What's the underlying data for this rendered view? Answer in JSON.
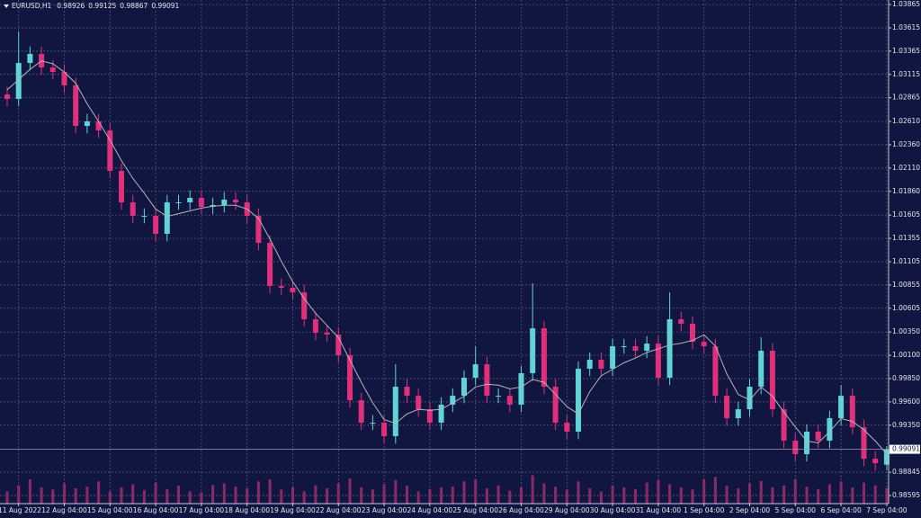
{
  "chart_data": {
    "type": "candlestick",
    "symbol": "EURUSD,H1",
    "categories": [
      null,
      "11 Aug 2022",
      null,
      null,
      null,
      "12 Aug 04:00",
      null,
      null,
      null,
      "15 Aug 04:00",
      null,
      null,
      null,
      "16 Aug 04:00",
      null,
      null,
      null,
      "17 Aug 04:00",
      null,
      null,
      null,
      "18 Aug 04:00",
      null,
      null,
      null,
      "19 Aug 04:00",
      null,
      null,
      null,
      "22 Aug 04:00",
      null,
      null,
      null,
      "23 Aug 04:00",
      null,
      null,
      null,
      "24 Aug 04:00",
      null,
      null,
      null,
      "25 Aug 04:00",
      null,
      null,
      null,
      "26 Aug 04:00",
      null,
      null,
      null,
      "29 Aug 04:00",
      null,
      null,
      null,
      "30 Aug 04:00",
      null,
      null,
      null,
      "31 Aug 04:00",
      null,
      null,
      null,
      "1 Sep 04:00",
      null,
      null,
      null,
      "2 Sep 04:00",
      null,
      null,
      null,
      "5 Sep 04:00",
      null,
      null,
      null,
      "6 Sep 04:00",
      null,
      null,
      null,
      "7 Sep 04:00"
    ],
    "open": [
      1.029,
      1.02852,
      1.03238,
      1.03335,
      1.0319,
      1.03142,
      1.02997,
      1.02562,
      1.02611,
      1.02514,
      1.0208,
      1.01742,
      1.01597,
      1.01597,
      1.01404,
      1.01742,
      1.01742,
      1.0179,
      1.01694,
      1.01713,
      1.01771,
      1.01742,
      1.01597,
      1.01307,
      1.00844,
      1.00825,
      1.00776,
      1.00487,
      1.00342,
      1.00323,
      1.00101,
      0.99618,
      0.99377,
      0.99377,
      0.99232,
      0.99763,
      0.99666,
      0.99521,
      0.99377,
      0.9957,
      0.99666,
      0.99859,
      1.00004,
      0.99666,
      0.99666,
      0.9957,
      0.99908,
      1.0039,
      0.99763,
      0.99377,
      0.9928,
      0.99956,
      1.00052,
      0.99956,
      1.00197,
      1.00197,
      1.00149,
      1.00226,
      0.99859,
      1.00487,
      1.00439,
      1.00245,
      1.00197,
      0.99666,
      0.99425,
      0.99521,
      0.99763,
      1.00149,
      0.99521,
      0.99184,
      0.99039,
      0.9928,
      0.99184,
      0.99425,
      0.99666,
      0.99328,
      0.9899,
      0.98926
    ],
    "high": [
      1.0298,
      1.03576,
      1.03415,
      1.03415,
      1.0327,
      1.03222,
      1.03077,
      1.02691,
      1.02691,
      1.02594,
      1.0216,
      1.01822,
      1.01677,
      1.01677,
      1.01822,
      1.01822,
      1.0187,
      1.0187,
      1.01793,
      1.01851,
      1.01851,
      1.01822,
      1.01677,
      1.01387,
      1.00924,
      1.00905,
      1.00856,
      1.00567,
      1.00422,
      1.00403,
      1.00181,
      0.99698,
      0.99457,
      0.99457,
      1.00004,
      0.99843,
      0.99746,
      0.99601,
      0.9965,
      0.99746,
      0.99939,
      1.00197,
      1.00084,
      0.99746,
      0.99746,
      0.99988,
      1.00873,
      1.0047,
      0.99843,
      0.99457,
      1.00036,
      1.00132,
      1.00132,
      1.00277,
      1.00277,
      1.00277,
      1.00306,
      1.00306,
      1.00776,
      1.00567,
      1.00519,
      1.00325,
      1.00277,
      0.99746,
      0.99601,
      0.99843,
      1.00294,
      1.00229,
      0.99601,
      0.99264,
      0.9936,
      0.9936,
      0.99505,
      0.99782,
      0.99746,
      0.99408,
      0.9907,
      0.99125
    ],
    "low": [
      1.02772,
      1.02772,
      1.03158,
      1.0311,
      1.03062,
      1.02917,
      1.02482,
      1.02482,
      1.02434,
      1.02,
      1.01662,
      1.01517,
      1.01517,
      1.01324,
      1.01324,
      1.01662,
      1.01662,
      1.01614,
      1.01614,
      1.01633,
      1.01662,
      1.01517,
      1.01227,
      1.00764,
      1.00745,
      1.00696,
      1.00407,
      1.00262,
      1.00243,
      1.00021,
      0.99538,
      0.99297,
      0.99297,
      0.99152,
      0.99152,
      0.99586,
      0.99441,
      0.99297,
      0.99297,
      0.9949,
      0.99586,
      0.99779,
      0.99586,
      0.99586,
      0.9949,
      0.9949,
      0.99828,
      0.99683,
      0.99297,
      0.992,
      0.992,
      0.99876,
      0.99876,
      0.99876,
      1.00117,
      1.00069,
      1.00069,
      0.99779,
      0.99779,
      1.00359,
      1.00165,
      1.00117,
      0.99586,
      0.99345,
      0.99345,
      0.99441,
      0.99683,
      0.99441,
      0.99104,
      0.98959,
      0.98959,
      0.99104,
      0.99104,
      0.99345,
      0.99248,
      0.9891,
      0.98862,
      0.98867
    ],
    "close": [
      1.02852,
      1.03238,
      1.03335,
      1.0319,
      1.03142,
      1.02997,
      1.02562,
      1.02611,
      1.02514,
      1.0208,
      1.01742,
      1.01597,
      1.01597,
      1.01404,
      1.01742,
      1.01742,
      1.0179,
      1.01694,
      1.01713,
      1.01771,
      1.01742,
      1.01597,
      1.01307,
      1.00844,
      1.00825,
      1.00776,
      1.00487,
      1.00342,
      1.00323,
      1.00101,
      0.99618,
      0.99377,
      0.99377,
      0.99232,
      0.99763,
      0.99666,
      0.99521,
      0.99377,
      0.9957,
      0.99666,
      0.99859,
      1.00004,
      0.99666,
      0.99666,
      0.9957,
      0.99908,
      1.0039,
      0.99763,
      0.99377,
      0.9928,
      0.99956,
      1.00052,
      0.99956,
      1.00197,
      1.00197,
      1.00149,
      1.00226,
      0.99859,
      1.00487,
      1.00439,
      1.00245,
      1.00197,
      0.99666,
      0.99425,
      0.99521,
      0.99763,
      1.00149,
      0.99521,
      0.99184,
      0.99039,
      0.9928,
      0.99184,
      0.99425,
      0.99666,
      0.99328,
      0.9899,
      0.98942,
      0.99091
    ],
    "up_color": "#5fd3d6",
    "down_color": "#e0307c",
    "moving_average": {
      "color": "#b4b4bc",
      "values": [
        1.0295,
        1.0306,
        1.0317,
        1.0326,
        1.0323,
        1.0314,
        1.0302,
        1.028,
        1.0261,
        1.0241,
        1.0219,
        1.02,
        1.0184,
        1.0167,
        1.0159,
        1.0162,
        1.0165,
        1.0168,
        1.017,
        1.0171,
        1.0171,
        1.0167,
        1.0157,
        1.0135,
        1.0111,
        1.0089,
        1.0071,
        1.0055,
        1.0042,
        1.0029,
        1.0005,
        0.9981,
        0.9959,
        0.9941,
        0.9937,
        0.9947,
        0.9952,
        0.9951,
        0.9952,
        0.9959,
        0.9966,
        0.9976,
        0.9979,
        0.9978,
        0.9974,
        0.9976,
        0.9984,
        0.9981,
        0.9968,
        0.9955,
        0.9947,
        0.9971,
        0.9988,
        0.9995,
        1.0002,
        1.0007,
        1.0013,
        1.0017,
        1.0021,
        1.0023,
        1.0026,
        1.0032,
        1.002,
        0.999,
        0.9968,
        0.9962,
        0.9976,
        0.9966,
        0.9949,
        0.9933,
        0.9918,
        0.9916,
        0.9928,
        0.9942,
        0.9939,
        0.993,
        0.9918,
        0.9904
      ]
    },
    "volume": [
      30,
      45,
      60,
      40,
      35,
      50,
      38,
      42,
      55,
      30,
      40,
      48,
      33,
      52,
      36,
      44,
      30,
      28,
      46,
      50,
      42,
      38,
      55,
      60,
      35,
      40,
      30,
      45,
      38,
      50,
      62,
      40,
      35,
      48,
      58,
      44,
      30,
      36,
      40,
      42,
      55,
      60,
      38,
      45,
      32,
      40,
      70,
      50,
      42,
      35,
      55,
      38,
      30,
      45,
      40,
      36,
      52,
      58,
      48,
      40,
      35,
      60,
      66,
      44,
      38,
      50,
      56,
      40,
      45,
      60,
      42,
      36,
      48,
      55,
      40,
      52,
      45,
      38
    ],
    "volume_lim": [
      0,
      100
    ],
    "volume_color": "#8a2a66",
    "ylim": [
      0.98508,
      1.03914
    ],
    "yticks": [
      1.03865,
      1.03615,
      1.03365,
      1.03115,
      1.02865,
      {
        "value": 1.0261,
        "label": "1.02610"
      },
      {
        "value": 1.0236,
        "label": "1.02360"
      },
      {
        "value": 1.0211,
        "label": "1.02110"
      },
      {
        "value": 1.0186,
        "label": "1.01860"
      },
      1.01605,
      1.01355,
      1.01105,
      1.00855,
      1.00605,
      {
        "value": 1.0035,
        "label": "1.00350"
      },
      {
        "value": 1.001,
        "label": "1.00100"
      },
      {
        "value": 0.9985,
        "label": "0.99850"
      },
      {
        "value": 0.996,
        "label": "0.99600"
      },
      {
        "value": 0.9935,
        "label": "0.99350"
      },
      0.98845,
      0.98595
    ],
    "grid": true
  }
}
